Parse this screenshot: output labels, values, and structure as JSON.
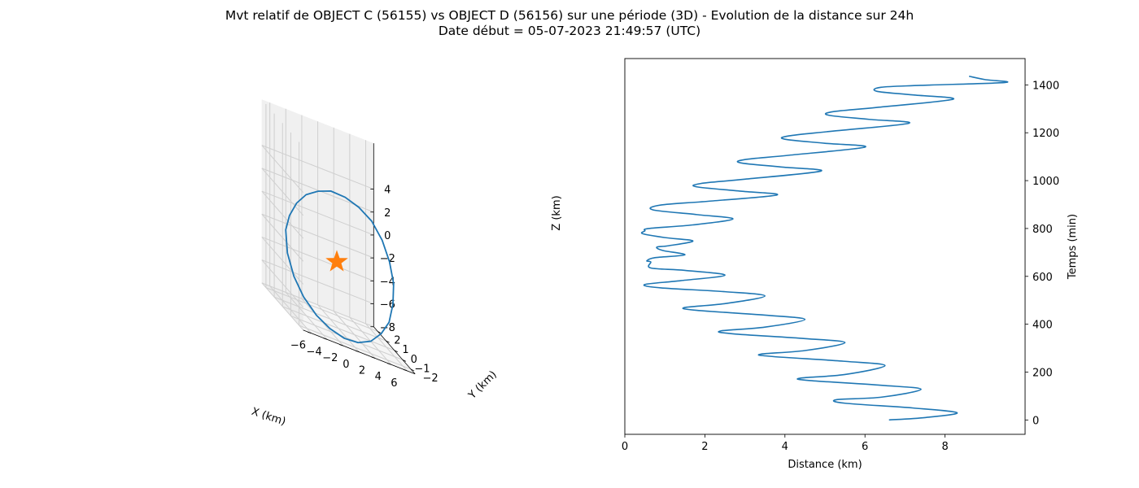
{
  "title_line1": "Mvt relatif de OBJECT C (56155) vs OBJECT D (56156) sur une période (3D) - Evolution de la distance sur 24h",
  "title_line2": "Date début = 05-07-2023 21:49:57 (UTC)",
  "chart_data": [
    {
      "type": "line3d",
      "xlabel": "X (km)",
      "ylabel": "Y (km)",
      "zlabel": "Z (km)",
      "xlim": [
        -7,
        7
      ],
      "ylim": [
        -2,
        2.5
      ],
      "zlim": [
        -8,
        5
      ],
      "xticks": [
        -6,
        -4,
        -2,
        0,
        2,
        4,
        6
      ],
      "yticks": [
        -2,
        -1,
        0,
        1,
        2
      ],
      "zticks": [
        -8,
        -6,
        -4,
        -2,
        0,
        2,
        4
      ],
      "series": [
        {
          "color": "#1f77b4",
          "points": [
            [
              -6.6,
              0.0,
              -1.2
            ],
            [
              -6.7,
              -0.3,
              -3.0
            ],
            [
              -6.3,
              -0.7,
              -4.6
            ],
            [
              -5.4,
              -1.0,
              -5.9
            ],
            [
              -4.1,
              -1.3,
              -6.9
            ],
            [
              -2.6,
              -1.5,
              -7.5
            ],
            [
              -0.9,
              -1.6,
              -7.8
            ],
            [
              0.8,
              -1.6,
              -7.7
            ],
            [
              2.5,
              -1.5,
              -7.2
            ],
            [
              4.0,
              -1.3,
              -6.3
            ],
            [
              5.3,
              -1.0,
              -5.2
            ],
            [
              6.2,
              -0.6,
              -3.7
            ],
            [
              6.7,
              -0.2,
              -2.1
            ],
            [
              6.7,
              0.3,
              -0.6
            ],
            [
              6.2,
              0.7,
              0.8
            ],
            [
              5.3,
              1.1,
              1.9
            ],
            [
              4.0,
              1.4,
              2.5
            ],
            [
              2.5,
              1.6,
              2.8
            ],
            [
              0.8,
              1.7,
              2.8
            ],
            [
              -0.9,
              1.6,
              2.4
            ],
            [
              -2.6,
              1.4,
              1.8
            ],
            [
              -4.1,
              1.1,
              0.9
            ],
            [
              -5.4,
              0.7,
              -0.2
            ],
            [
              -6.3,
              0.3,
              -1.4
            ]
          ]
        }
      ],
      "marker": {
        "label": "star",
        "color": "#ff7f0e",
        "position": [
          -0.1,
          0.1,
          -2.3
        ]
      }
    },
    {
      "type": "line",
      "xlabel": "Distance (km)",
      "ylabel": "Temps (min)",
      "xlim": [
        0,
        10
      ],
      "ylim": [
        -60,
        1510
      ],
      "xticks": [
        0,
        2,
        4,
        6,
        8
      ],
      "yticks": [
        0,
        200,
        400,
        600,
        800,
        1000,
        1200,
        1400
      ],
      "series": [
        {
          "color": "#1f77b4",
          "points": [
            [
              6.6,
              0
            ],
            [
              7.5,
              10
            ],
            [
              8.3,
              30
            ],
            [
              7.2,
              50
            ],
            [
              5.5,
              70
            ],
            [
              5.3,
              85
            ],
            [
              6.4,
              95
            ],
            [
              7.4,
              128
            ],
            [
              6.4,
              145
            ],
            [
              4.6,
              165
            ],
            [
              4.4,
              175
            ],
            [
              5.5,
              190
            ],
            [
              6.5,
              227
            ],
            [
              5.5,
              245
            ],
            [
              3.7,
              265
            ],
            [
              3.4,
              275
            ],
            [
              4.5,
              290
            ],
            [
              5.5,
              323
            ],
            [
              4.5,
              340
            ],
            [
              2.7,
              360
            ],
            [
              2.4,
              372
            ],
            [
              3.5,
              388
            ],
            [
              4.5,
              420
            ],
            [
              3.5,
              438
            ],
            [
              1.8,
              458
            ],
            [
              1.5,
              470
            ],
            [
              2.5,
              486
            ],
            [
              3.5,
              518
            ],
            [
              2.5,
              536
            ],
            [
              0.9,
              552
            ],
            [
              0.5,
              566
            ],
            [
              1.4,
              582
            ],
            [
              2.5,
              605
            ],
            [
              1.5,
              625
            ],
            [
              0.65,
              635
            ],
            [
              0.65,
              660
            ],
            [
              0.55,
              665
            ],
            [
              0.75,
              678
            ],
            [
              1.5,
              690
            ],
            [
              0.95,
              708
            ],
            [
              0.8,
              722
            ],
            [
              1.1,
              728
            ],
            [
              1.7,
              748
            ],
            [
              1.0,
              762
            ],
            [
              0.45,
              778
            ],
            [
              0.5,
              790
            ],
            [
              0.6,
              800
            ],
            [
              1.7,
              815
            ],
            [
              2.7,
              840
            ],
            [
              1.8,
              858
            ],
            [
              0.7,
              878
            ],
            [
              0.9,
              898
            ],
            [
              2.1,
              914
            ],
            [
              3.8,
              940
            ],
            [
              2.9,
              956
            ],
            [
              1.8,
              974
            ],
            [
              1.9,
              988
            ],
            [
              3.0,
              1006
            ],
            [
              4.9,
              1040
            ],
            [
              3.9,
              1057
            ],
            [
              2.9,
              1074
            ],
            [
              3.0,
              1088
            ],
            [
              4.1,
              1106
            ],
            [
              6.0,
              1140
            ],
            [
              5.0,
              1156
            ],
            [
              4.0,
              1173
            ],
            [
              4.1,
              1187
            ],
            [
              5.2,
              1207
            ],
            [
              7.1,
              1240
            ],
            [
              6.1,
              1256
            ],
            [
              5.1,
              1273
            ],
            [
              5.2,
              1288
            ],
            [
              6.3,
              1306
            ],
            [
              8.2,
              1340
            ],
            [
              7.2,
              1358
            ],
            [
              6.3,
              1373
            ],
            [
              6.4,
              1390
            ],
            [
              7.4,
              1398
            ],
            [
              9.5,
              1410
            ],
            [
              9.0,
              1422
            ],
            [
              8.6,
              1436
            ]
          ]
        }
      ]
    }
  ]
}
